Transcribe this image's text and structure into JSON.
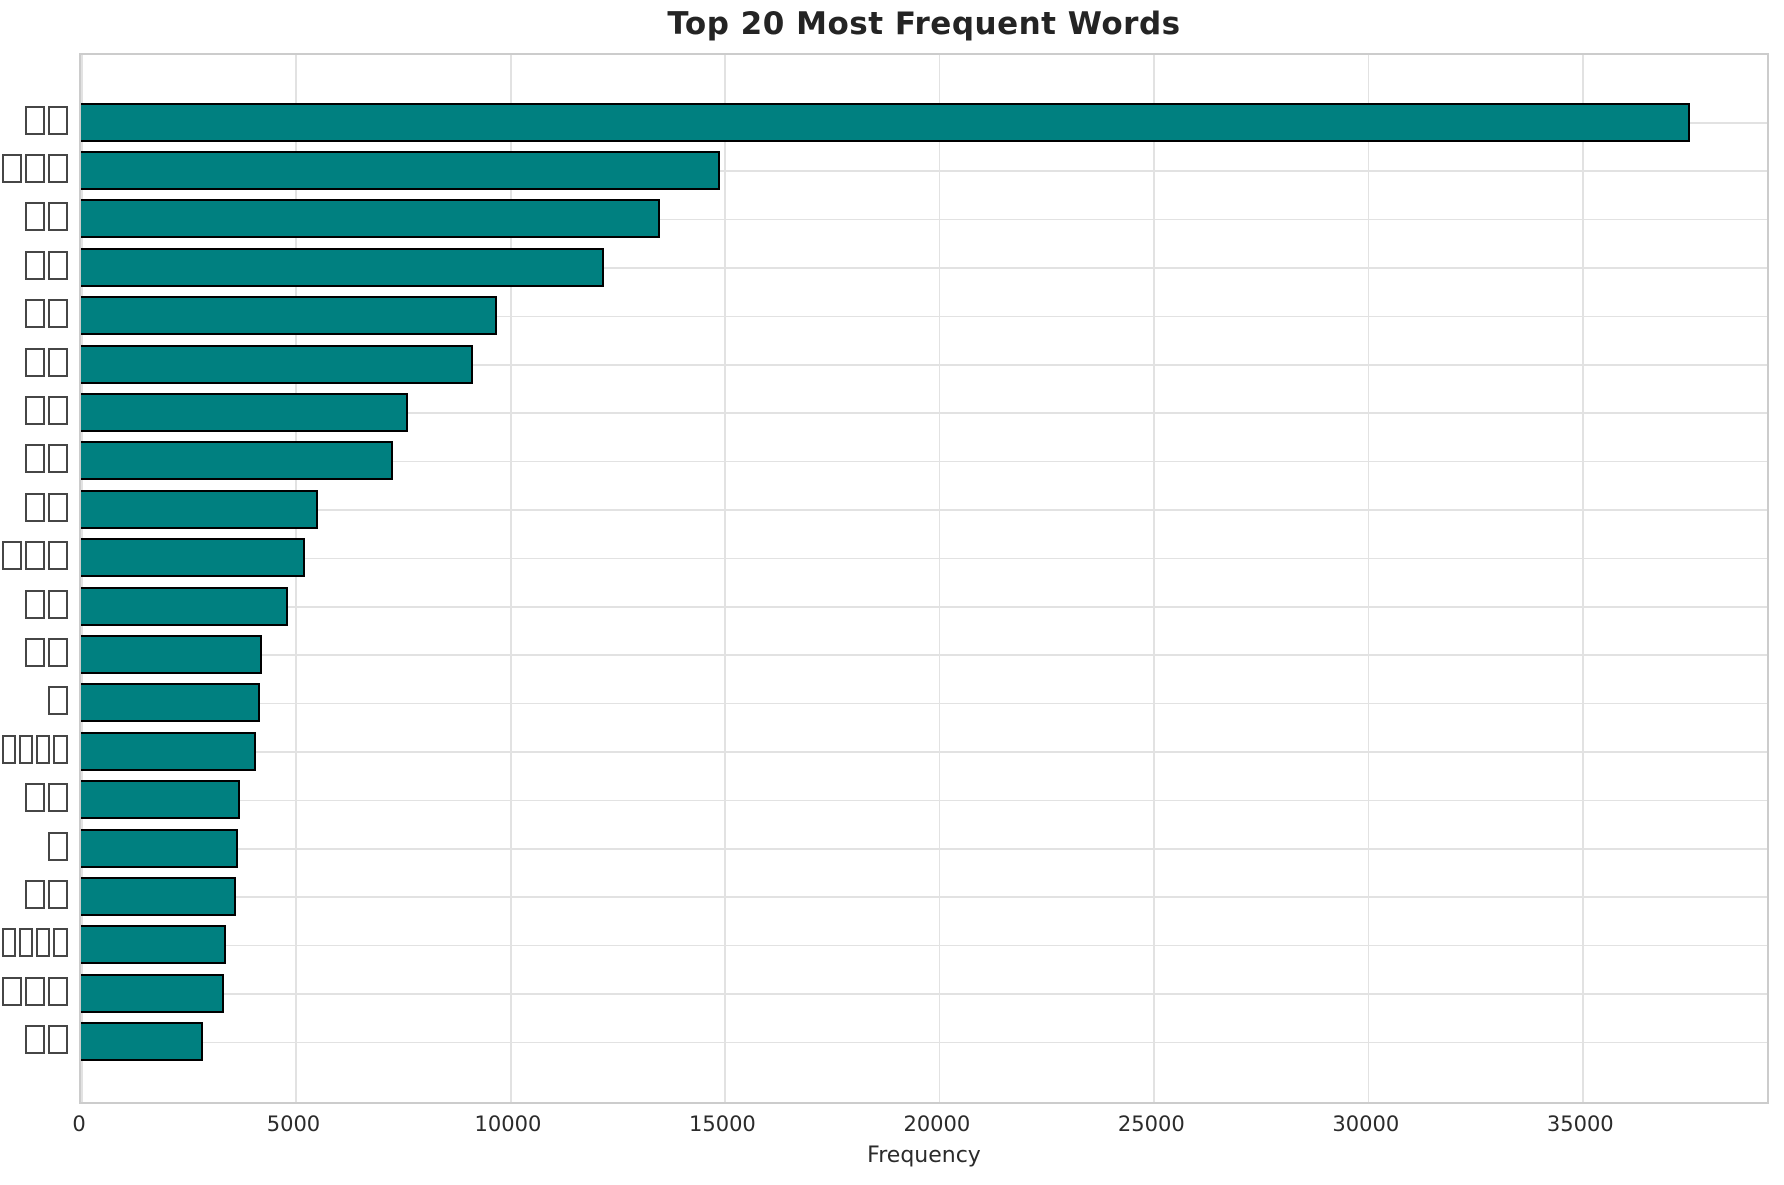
{
  "chart_data": {
    "type": "bar",
    "orientation": "horizontal",
    "title": "Top 20 Most Frequent Words",
    "xlabel": "Frequency",
    "ylabel": "",
    "categories": [
      "□□",
      "□□□",
      "□□",
      "□□",
      "□□",
      "□□",
      "□□",
      "□□",
      "□□",
      "□□□",
      "□□",
      "□□",
      "□",
      "□□□□",
      "□□",
      "□",
      "□□",
      "□□□□",
      "□□□",
      "□□"
    ],
    "category_tofu_counts": [
      2,
      3,
      2,
      2,
      2,
      2,
      2,
      2,
      2,
      3,
      2,
      2,
      1,
      4,
      2,
      1,
      2,
      4,
      3,
      2
    ],
    "values": [
      37500,
      14900,
      13500,
      12200,
      9700,
      9150,
      7620,
      7280,
      5520,
      5220,
      4820,
      4220,
      4170,
      4080,
      3700,
      3660,
      3610,
      3380,
      3330,
      2840
    ],
    "xticks": [
      0,
      5000,
      10000,
      15000,
      20000,
      25000,
      30000,
      35000
    ],
    "xtick_labels": [
      "0",
      "5000",
      "10000",
      "15000",
      "20000",
      "25000",
      "30000",
      "35000"
    ],
    "xlim": [
      0,
      39400
    ],
    "grid": true,
    "legend": null,
    "bar_color": "#008080",
    "bar_edge_color": "#000000",
    "grid_color": "#e2e2e2",
    "label_glyph": "tofu-box"
  }
}
